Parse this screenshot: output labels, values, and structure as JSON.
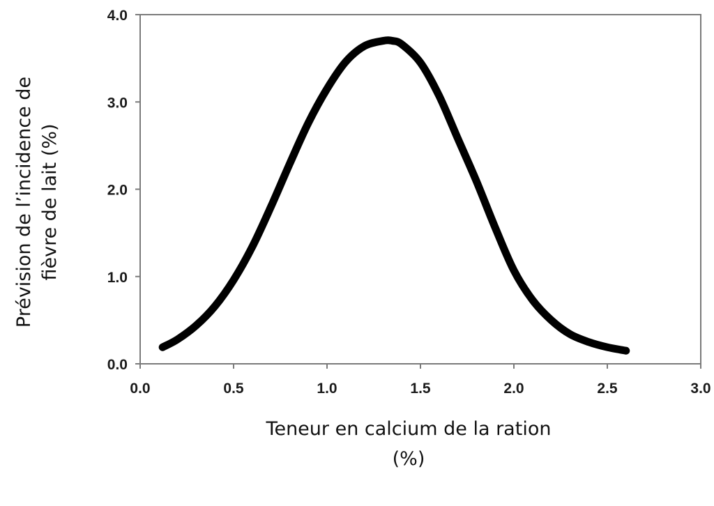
{
  "chart_data": {
    "type": "line",
    "title": "",
    "xlabel": "Teneur en calcium de la ration",
    "xlabel_unit": "(%)",
    "ylabel": "Prévision de l’incidence de",
    "ylabel_line2": "fièvre de lait  (%)",
    "xlim": [
      0,
      3.0
    ],
    "ylim": [
      0,
      4.0
    ],
    "x_ticks": [
      "0.0",
      "0.5",
      "1.0",
      "1.5",
      "2.0",
      "2.5",
      "3.0"
    ],
    "y_ticks": [
      "0.0",
      "1.0",
      "2.0",
      "3.0",
      "4.0"
    ],
    "grid": false,
    "legend": "none",
    "line_color": "#000000",
    "series": [
      {
        "x": [
          0.12,
          0.2,
          0.3,
          0.4,
          0.5,
          0.6,
          0.7,
          0.8,
          0.9,
          1.0,
          1.1,
          1.2,
          1.3,
          1.35,
          1.4,
          1.5,
          1.6,
          1.7,
          1.8,
          1.9,
          2.0,
          2.1,
          2.2,
          2.3,
          2.4,
          2.5,
          2.6
        ],
        "y": [
          0.19,
          0.28,
          0.44,
          0.66,
          0.96,
          1.34,
          1.8,
          2.29,
          2.76,
          3.15,
          3.46,
          3.64,
          3.7,
          3.7,
          3.66,
          3.45,
          3.07,
          2.58,
          2.09,
          1.56,
          1.07,
          0.73,
          0.5,
          0.34,
          0.25,
          0.19,
          0.15
        ]
      }
    ]
  }
}
